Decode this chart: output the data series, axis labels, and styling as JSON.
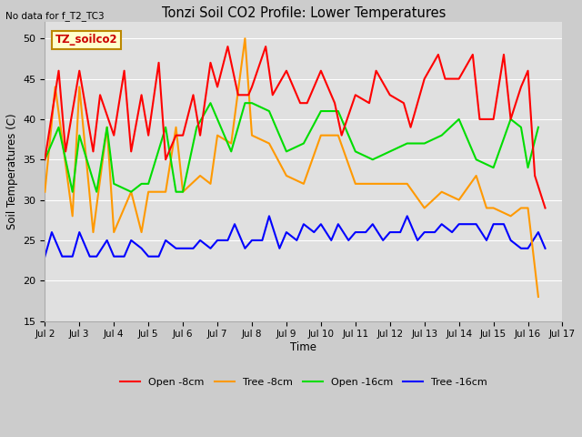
{
  "title": "Tonzi Soil CO2 Profile: Lower Temperatures",
  "no_data_text": "No data for f_T2_TC3",
  "ylabel": "Soil Temperatures (C)",
  "xlabel": "Time",
  "ylim": [
    15,
    52
  ],
  "yticks": [
    15,
    20,
    25,
    30,
    35,
    40,
    45,
    50
  ],
  "legend_label": "TZ_soilco2",
  "legend_box_facecolor": "#ffffcc",
  "legend_box_edgecolor": "#bb8800",
  "legend_label_color": "#cc0000",
  "fig_facecolor": "#cccccc",
  "plot_facecolor": "#e0e0e0",
  "grid_color": "#ffffff",
  "series_labels": [
    "Open -8cm",
    "Tree -8cm",
    "Open -16cm",
    "Tree -16cm"
  ],
  "series_colors": [
    "#ff0000",
    "#ff9900",
    "#00dd00",
    "#0000ff"
  ],
  "open8_x": [
    2.0,
    2.4,
    2.6,
    3.0,
    3.4,
    3.6,
    4.0,
    4.3,
    4.5,
    4.8,
    5.0,
    5.3,
    5.5,
    5.8,
    6.0,
    6.3,
    6.5,
    6.8,
    7.0,
    7.3,
    7.6,
    7.9,
    8.0,
    8.4,
    8.6,
    9.0,
    9.4,
    9.6,
    10.0,
    10.4,
    10.6,
    11.0,
    11.4,
    11.6,
    12.0,
    12.4,
    12.6,
    13.0,
    13.4,
    13.6,
    14.0,
    14.4,
    14.6,
    15.0,
    15.3,
    15.5,
    15.8,
    16.0,
    16.2,
    16.5
  ],
  "open8_y": [
    35,
    46,
    36,
    46,
    36,
    43,
    38,
    46,
    36,
    43,
    38,
    47,
    35,
    38,
    38,
    43,
    38,
    47,
    44,
    49,
    43,
    43,
    44,
    49,
    43,
    46,
    42,
    42,
    46,
    42,
    38,
    43,
    42,
    46,
    43,
    42,
    39,
    45,
    48,
    45,
    45,
    48,
    40,
    40,
    48,
    40,
    44,
    46,
    33,
    29
  ],
  "tree8_x": [
    2.0,
    2.3,
    2.8,
    3.0,
    3.4,
    3.8,
    4.0,
    4.5,
    4.8,
    5.0,
    5.5,
    5.8,
    6.0,
    6.5,
    6.8,
    7.0,
    7.4,
    7.8,
    8.0,
    8.5,
    9.0,
    9.5,
    10.0,
    10.5,
    11.0,
    11.5,
    12.0,
    12.5,
    13.0,
    13.5,
    14.0,
    14.5,
    14.8,
    15.0,
    15.5,
    15.8,
    16.0,
    16.3
  ],
  "tree8_y": [
    31,
    44,
    28,
    44,
    26,
    39,
    26,
    31,
    26,
    31,
    31,
    39,
    31,
    33,
    32,
    38,
    37,
    50,
    38,
    37,
    33,
    32,
    38,
    38,
    32,
    32,
    32,
    32,
    29,
    31,
    30,
    33,
    29,
    29,
    28,
    29,
    29,
    18
  ],
  "open16_x": [
    2.0,
    2.4,
    2.8,
    3.0,
    3.5,
    3.8,
    4.0,
    4.5,
    4.8,
    5.0,
    5.5,
    5.8,
    6.0,
    6.4,
    6.8,
    7.0,
    7.4,
    7.8,
    8.0,
    8.5,
    9.0,
    9.5,
    10.0,
    10.5,
    11.0,
    11.5,
    12.0,
    12.5,
    13.0,
    13.5,
    14.0,
    14.5,
    15.0,
    15.5,
    15.8,
    16.0,
    16.3
  ],
  "open16_y": [
    35,
    39,
    31,
    38,
    31,
    39,
    32,
    31,
    32,
    32,
    39,
    31,
    31,
    39,
    42,
    40,
    36,
    42,
    42,
    41,
    36,
    37,
    41,
    41,
    36,
    35,
    36,
    37,
    37,
    38,
    40,
    35,
    34,
    40,
    39,
    34,
    39
  ],
  "tree16_x": [
    2.0,
    2.2,
    2.5,
    2.8,
    3.0,
    3.3,
    3.5,
    3.8,
    4.0,
    4.3,
    4.5,
    4.8,
    5.0,
    5.3,
    5.5,
    5.8,
    6.0,
    6.3,
    6.5,
    6.8,
    7.0,
    7.3,
    7.5,
    7.8,
    8.0,
    8.3,
    8.5,
    8.8,
    9.0,
    9.3,
    9.5,
    9.8,
    10.0,
    10.3,
    10.5,
    10.8,
    11.0,
    11.3,
    11.5,
    11.8,
    12.0,
    12.3,
    12.5,
    12.8,
    13.0,
    13.3,
    13.5,
    13.8,
    14.0,
    14.3,
    14.5,
    14.8,
    15.0,
    15.3,
    15.5,
    15.8,
    16.0,
    16.3,
    16.5
  ],
  "tree16_y": [
    23,
    26,
    23,
    23,
    26,
    23,
    23,
    25,
    23,
    23,
    25,
    24,
    23,
    23,
    25,
    24,
    24,
    24,
    25,
    24,
    25,
    25,
    27,
    24,
    25,
    25,
    28,
    24,
    26,
    25,
    27,
    26,
    27,
    25,
    27,
    25,
    26,
    26,
    27,
    25,
    26,
    26,
    28,
    25,
    26,
    26,
    27,
    26,
    27,
    27,
    27,
    25,
    27,
    27,
    25,
    24,
    24,
    26,
    24
  ]
}
